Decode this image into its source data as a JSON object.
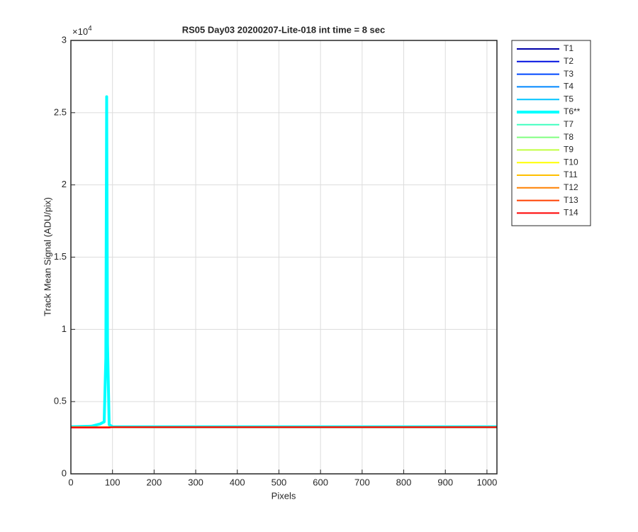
{
  "chart_data": {
    "type": "line",
    "title": "RS05 Day03 20200207-Lite-018 int time = 8 sec",
    "x_label": "Pixels",
    "y_label": "Track Mean Signal (ADU/pix)",
    "y_multiplier": {
      "base": "×10",
      "exponent": "4"
    },
    "xlim": [
      0,
      1024
    ],
    "ylim": [
      0,
      30000
    ],
    "xticks": [
      0,
      100,
      200,
      300,
      400,
      500,
      600,
      700,
      800,
      900,
      1000
    ],
    "yticks": [
      0,
      {
        "value": 5000,
        "label": "0.5"
      },
      {
        "value": 10000,
        "label": "1"
      },
      {
        "value": 15000,
        "label": "1.5"
      },
      {
        "value": 20000,
        "label": "2"
      },
      {
        "value": 25000,
        "label": "2.5"
      },
      {
        "value": 30000,
        "label": "3"
      }
    ],
    "grid": true,
    "legend": "outside-top-right",
    "x": [
      0,
      50,
      70,
      80,
      84,
      86,
      88,
      92,
      100,
      200,
      400,
      600,
      800,
      1024
    ],
    "series": [
      {
        "name": "T1",
        "color": "#0000a8",
        "line_width": 2,
        "values": [
          3230,
          3230,
          3230,
          3230,
          3230,
          3230,
          3230,
          3230,
          3230,
          3230,
          3230,
          3230,
          3230,
          3230
        ]
      },
      {
        "name": "T2",
        "color": "#0010e0",
        "line_width": 2,
        "values": [
          3230,
          3230,
          3230,
          3230,
          3230,
          3230,
          3230,
          3230,
          3230,
          3230,
          3230,
          3230,
          3230,
          3230
        ]
      },
      {
        "name": "T3",
        "color": "#0048ff",
        "line_width": 2,
        "values": [
          3230,
          3230,
          3230,
          3230,
          3230,
          3230,
          3230,
          3230,
          3230,
          3230,
          3230,
          3230,
          3230,
          3230
        ]
      },
      {
        "name": "T4",
        "color": "#0088ff",
        "line_width": 2,
        "values": [
          3230,
          3230,
          3230,
          3230,
          3230,
          3230,
          3230,
          3230,
          3230,
          3230,
          3230,
          3230,
          3230,
          3230
        ]
      },
      {
        "name": "T5",
        "color": "#00c4ff",
        "line_width": 2,
        "values": [
          3230,
          3230,
          3230,
          3230,
          3230,
          3230,
          3230,
          3230,
          3230,
          3230,
          3230,
          3230,
          3230,
          3230
        ]
      },
      {
        "name": "T6**",
        "color": "#00ffff",
        "line_width": 4,
        "values": [
          3250,
          3300,
          3450,
          3600,
          8000,
          26100,
          9000,
          3400,
          3260,
          3250,
          3250,
          3250,
          3250,
          3250
        ]
      },
      {
        "name": "T7",
        "color": "#40ffc0",
        "line_width": 2,
        "values": [
          3230,
          3230,
          3230,
          3230,
          3230,
          3230,
          3230,
          3230,
          3230,
          3230,
          3230,
          3230,
          3230,
          3230
        ]
      },
      {
        "name": "T8",
        "color": "#80ff80",
        "line_width": 2,
        "values": [
          3230,
          3230,
          3230,
          3230,
          3230,
          3230,
          3230,
          3230,
          3230,
          3230,
          3230,
          3230,
          3230,
          3230
        ]
      },
      {
        "name": "T9",
        "color": "#c0ff40",
        "line_width": 2,
        "values": [
          3230,
          3230,
          3230,
          3230,
          3230,
          3230,
          3230,
          3230,
          3230,
          3230,
          3230,
          3230,
          3230,
          3230
        ]
      },
      {
        "name": "T10",
        "color": "#ffff00",
        "line_width": 2,
        "values": [
          3230,
          3230,
          3230,
          3230,
          3230,
          3230,
          3230,
          3230,
          3230,
          3230,
          3230,
          3230,
          3230,
          3230
        ]
      },
      {
        "name": "T11",
        "color": "#ffc000",
        "line_width": 2,
        "values": [
          3230,
          3230,
          3230,
          3230,
          3230,
          3230,
          3230,
          3230,
          3230,
          3230,
          3230,
          3230,
          3230,
          3230
        ]
      },
      {
        "name": "T12",
        "color": "#ff8000",
        "line_width": 2,
        "values": [
          3230,
          3230,
          3230,
          3230,
          3230,
          3230,
          3230,
          3230,
          3230,
          3230,
          3230,
          3230,
          3230,
          3230
        ]
      },
      {
        "name": "T13",
        "color": "#ff4000",
        "line_width": 2,
        "values": [
          3230,
          3230,
          3230,
          3230,
          3230,
          3230,
          3230,
          3230,
          3230,
          3230,
          3230,
          3230,
          3230,
          3230
        ]
      },
      {
        "name": "T14",
        "color": "#ff0000",
        "line_width": 2,
        "values": [
          3200,
          3200,
          3200,
          3200,
          3200,
          3200,
          3200,
          3200,
          3230,
          3230,
          3230,
          3230,
          3230,
          3230
        ]
      }
    ]
  }
}
